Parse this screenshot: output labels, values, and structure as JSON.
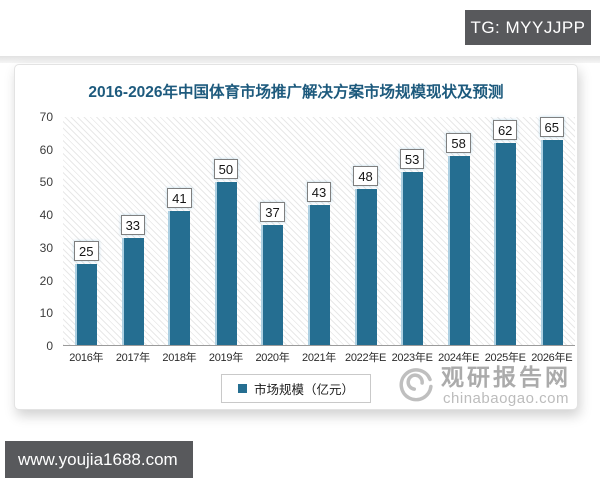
{
  "overlays": {
    "tg_label": "TG: MYYJJPP",
    "site_label": "www.youjia1688.com",
    "overlay_bg": "#58595c"
  },
  "chart_data": {
    "type": "bar",
    "title": "2016-2026年中国体育市场推广解决方案市场规模现状及预测",
    "title_color": "#1d5a7d",
    "categories": [
      "2016年",
      "2017年",
      "2018年",
      "2019年",
      "2020年",
      "2021年",
      "2022年E",
      "2023年E",
      "2024年E",
      "2025年E",
      "2026年E"
    ],
    "values": [
      25,
      33,
      41,
      50,
      37,
      43,
      48,
      53,
      58,
      62,
      65
    ],
    "series_name": "市场规模（亿元）",
    "xlabel": "",
    "ylabel": "",
    "ylim": [
      0,
      70
    ],
    "yticks": [
      0,
      10,
      20,
      30,
      40,
      50,
      60,
      70
    ],
    "bar_color": "#256e91",
    "grid": false,
    "data_labels": true,
    "legend_position": "bottom"
  },
  "legend": {
    "marker_color": "#256e91",
    "label": "市场规模（亿元）"
  },
  "watermark": {
    "name": "观研报告网",
    "domain": "chinabaogao.com",
    "logo": "swirl-logo"
  }
}
